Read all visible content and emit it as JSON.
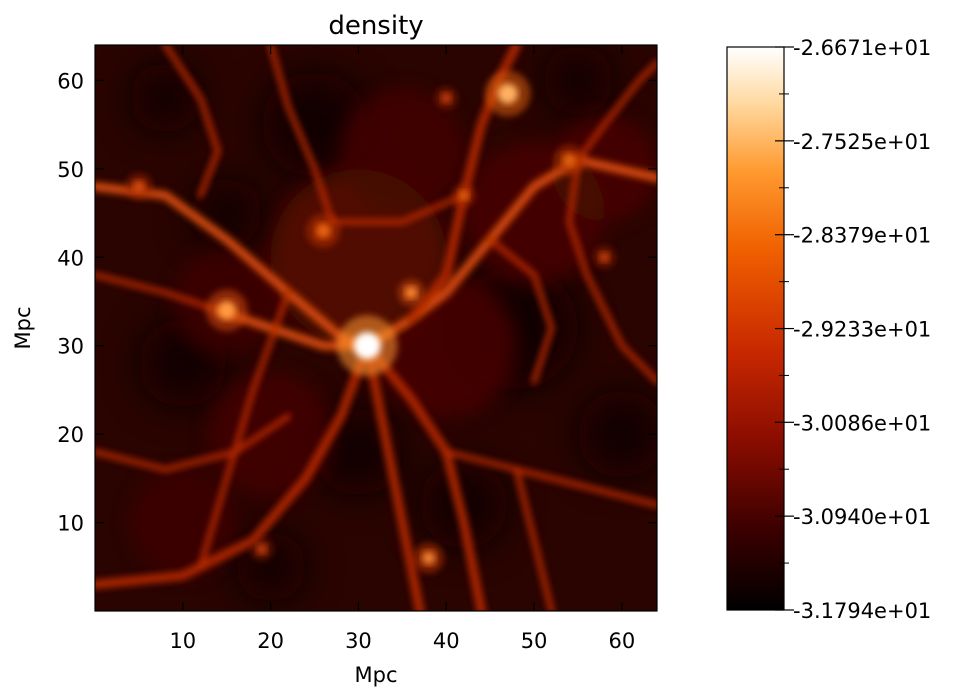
{
  "chart_data": {
    "type": "heatmap",
    "title": "density",
    "xlabel": "Mpc",
    "ylabel": "Mpc",
    "xlim": [
      0,
      64
    ],
    "ylim": [
      0,
      64
    ],
    "xticks": [
      10,
      20,
      30,
      40,
      50,
      60
    ],
    "yticks": [
      10,
      20,
      30,
      40,
      50,
      60
    ],
    "colorbar": {
      "range": [
        -31.794,
        -26.671
      ],
      "ticks": [
        {
          "value": -26.671,
          "label": "-2.6671e+01"
        },
        {
          "value": -27.525,
          "label": "-2.7525e+01"
        },
        {
          "value": -28.379,
          "label": "-2.8379e+01"
        },
        {
          "value": -29.233,
          "label": "-2.9233e+01"
        },
        {
          "value": -30.086,
          "label": "-3.0086e+01"
        },
        {
          "value": -30.94,
          "label": "-3.0940e+01"
        },
        {
          "value": -31.794,
          "label": "-3.1794e+01"
        }
      ],
      "colors": [
        "#000000",
        "#3a0000",
        "#8a0c00",
        "#c82800",
        "#f06000",
        "#ff9a30",
        "#ffd9a0",
        "#ffffff"
      ]
    },
    "background_color": "#2a0400"
  }
}
